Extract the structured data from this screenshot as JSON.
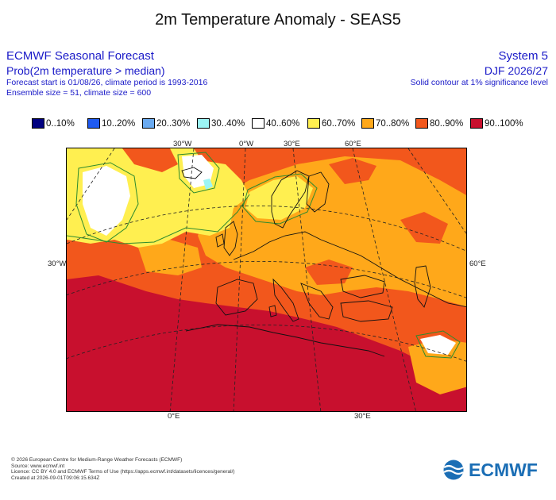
{
  "title": "2m Temperature Anomaly - SEAS5",
  "header_left": {
    "line1": "ECMWF Seasonal Forecast",
    "line2": "Prob(2m temperature > median)",
    "line3": "Forecast start is 01/08/26, climate period is 1993-2016",
    "line4": "Ensemble size = 51, climate size = 600"
  },
  "header_right": {
    "line1": "System 5",
    "line2": "DJF 2026/27",
    "line3": "Solid contour at 1% significance level"
  },
  "legend": [
    {
      "label": "0..10%",
      "color": "#000080"
    },
    {
      "label": "10..20%",
      "color": "#1f5af0"
    },
    {
      "label": "20..30%",
      "color": "#6aaaf0"
    },
    {
      "label": "30..40%",
      "color": "#9cf5f5"
    },
    {
      "label": "40..60%",
      "color": "#ffffff"
    },
    {
      "label": "60..70%",
      "color": "#ffef50"
    },
    {
      "label": "70..80%",
      "color": "#ffa81a"
    },
    {
      "label": "80..90%",
      "color": "#f2571c"
    },
    {
      "label": "90..100%",
      "color": "#c8102e"
    }
  ],
  "map": {
    "labels": {
      "top_30w": "30°W",
      "top_0w": "0°W",
      "top_30e": "30°E",
      "top_60e": "60°E",
      "left_30w": "30°W",
      "right_60e": "60°E",
      "bottom_0e": "0°E",
      "bottom_30e": "30°E"
    }
  },
  "footer": {
    "line1": "© 2026 European Centre for Medium-Range Weather Forecasts (ECMWF)",
    "line2": "Source: www.ecmwf.int",
    "line3": "Licence: CC BY 4.0 and ECMWF Terms of Use (https://apps.ecmwf.int/datasets/licences/general/)",
    "line4": "Created at 2026-09-01T09:06:15.634Z"
  },
  "logo_text": "ECMWF"
}
